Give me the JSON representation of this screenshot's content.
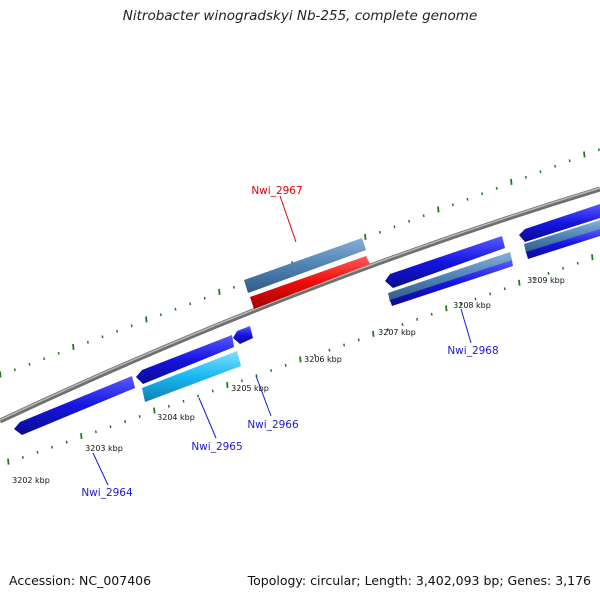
{
  "header": {
    "title": "Nitrobacter winogradskyi Nb-255, complete genome"
  },
  "footer": {
    "accession": "Accession: NC_007406",
    "summary": "Topology: circular; Length: 3,402,093 bp; Genes: 3,176"
  },
  "colors": {
    "backbone": "#7f7f7f",
    "tick": "#1f7a1f",
    "gene_blue": "#1515e0",
    "gene_steel": "#4f82b4",
    "gene_red": "#f00a0a",
    "gene_cyan": "#19b8f0",
    "label_blue": "#1a1ad0",
    "label_red": "#e00000"
  },
  "scale_labels": [
    "3202 kbp",
    "3203 kbp",
    "3204 kbp",
    "3205 kbp",
    "3206 kbp",
    "3207 kbp",
    "3208 kbp",
    "3209 kbp"
  ],
  "gene_labels": [
    {
      "id": "Nwi_2964",
      "text": "Nwi_2964",
      "color": "blue"
    },
    {
      "id": "Nwi_2965",
      "text": "Nwi_2965",
      "color": "blue"
    },
    {
      "id": "Nwi_2966",
      "text": "Nwi_2966",
      "color": "blue"
    },
    {
      "id": "Nwi_2967",
      "text": "Nwi_2967",
      "color": "red"
    },
    {
      "id": "Nwi_2968",
      "text": "Nwi_2968",
      "color": "blue"
    }
  ]
}
